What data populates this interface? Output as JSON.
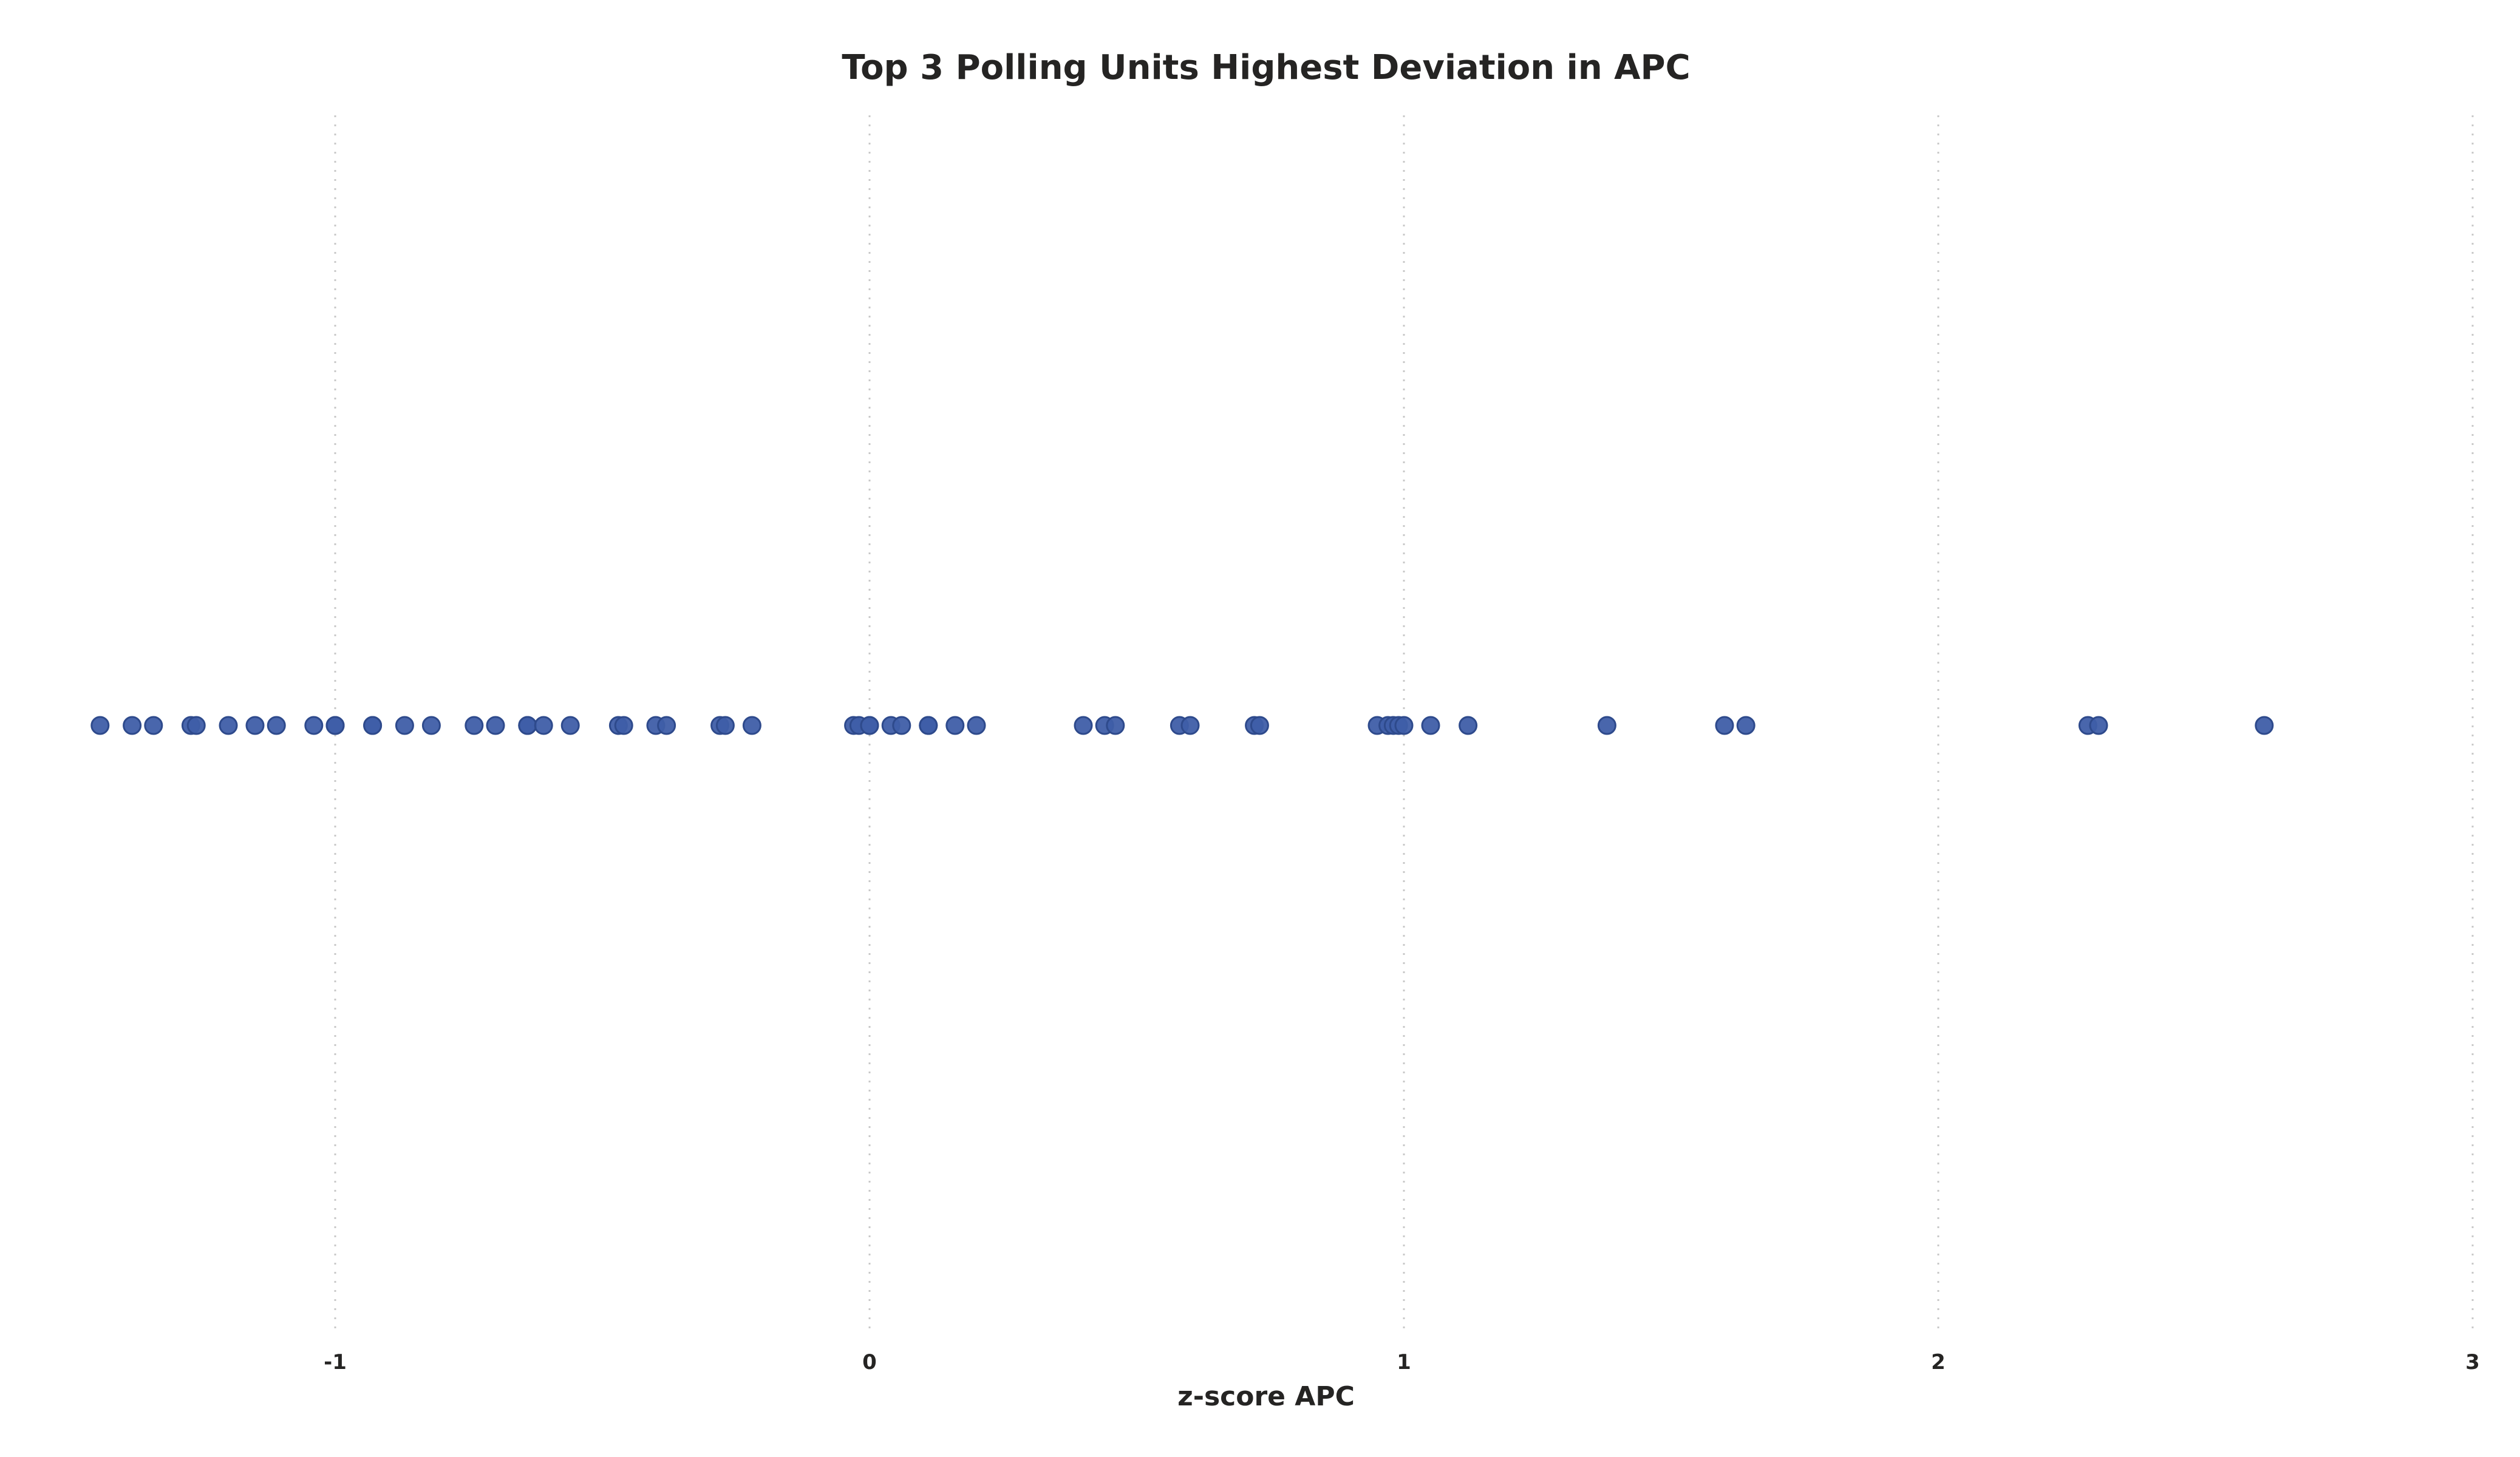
{
  "chart_data": {
    "type": "scatter",
    "title": "Top 3 Polling Units Highest Deviation in APC",
    "xlabel": "z-score APC",
    "ylabel": "",
    "xlim": [
      -1.5,
      3.0
    ],
    "xticks": [
      {
        "value": -1,
        "label": "-1"
      },
      {
        "value": 0,
        "label": "0"
      },
      {
        "value": 1,
        "label": "1"
      },
      {
        "value": 2,
        "label": "2"
      },
      {
        "value": 3,
        "label": "3"
      }
    ],
    "grid": "vertical-dotted",
    "legend": "none",
    "point_color": "#3f5ea8",
    "point_stroke": "#2e4a8c",
    "series": [
      {
        "x": [
          -1.44,
          -1.38,
          -1.34,
          -1.27,
          -1.26,
          -1.2,
          -1.15,
          -1.11,
          -1.04,
          -1.0,
          -1.0,
          -0.93,
          -0.93,
          -0.87,
          -0.82,
          -0.74,
          -0.7,
          -0.64,
          -0.64,
          -0.61,
          -0.56,
          -0.47,
          -0.46,
          -0.4,
          -0.38,
          -0.28,
          -0.27,
          -0.22,
          -0.03,
          -0.02,
          0.0,
          0.0,
          0.04,
          0.06,
          0.11,
          0.11,
          0.16,
          0.2,
          0.4,
          0.44,
          0.46,
          0.58,
          0.6,
          0.72,
          0.73,
          0.95,
          0.97,
          0.98,
          0.99,
          1.0,
          1.05,
          1.12,
          1.38,
          1.6,
          1.64,
          2.28,
          2.3,
          2.61
        ]
      }
    ]
  }
}
